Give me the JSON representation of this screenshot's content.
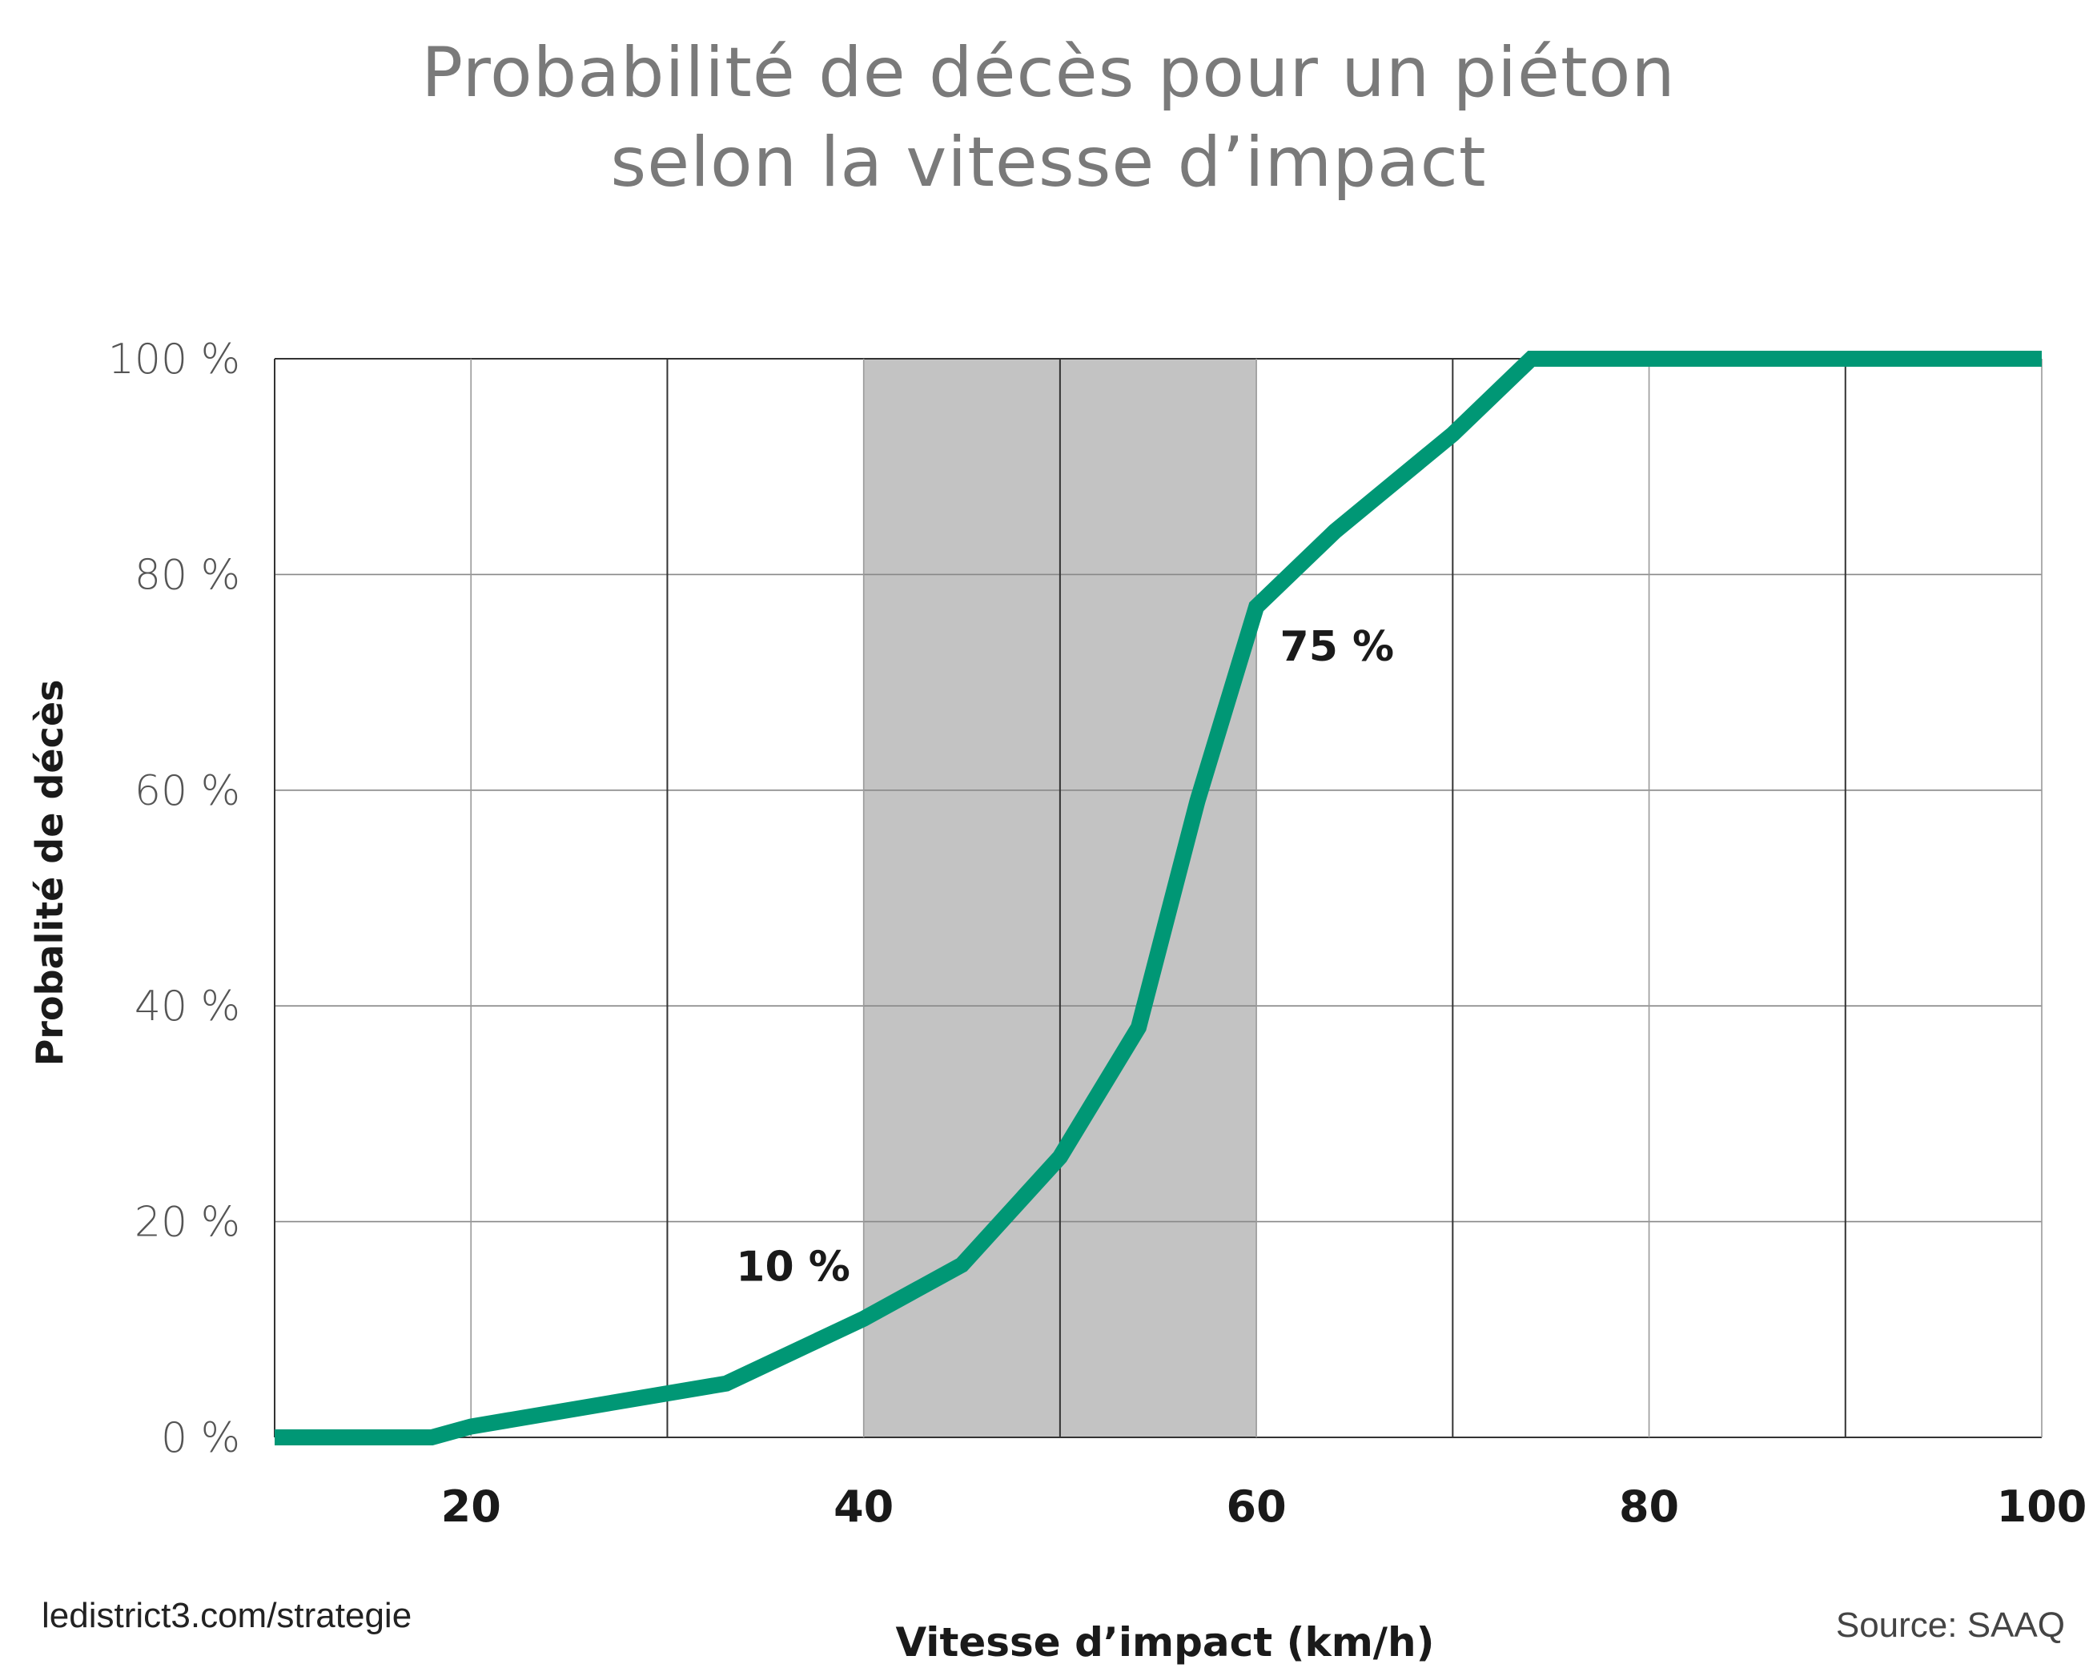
{
  "title_line1": "Probabilité de décès pour un piéton",
  "title_line2": "selon la vitesse d’impact",
  "footer_left": "ledistrict3.com/strategie",
  "source": "Source: SAAQ",
  "colors": {
    "line": "#009775",
    "highlight_band": "#c3c3c3",
    "grid": "#888888",
    "axis_text_bold": "#1a1a1a",
    "axis_text_light": "#555555"
  },
  "chart_data": {
    "type": "line",
    "title": "Probabilité de décès pour un piéton selon la vitesse d’impact",
    "xlabel": "Vitesse d’impact (km/h)",
    "ylabel": "Probalité de décès",
    "xlim": [
      10,
      100
    ],
    "ylim": [
      0,
      100
    ],
    "x_ticks": [
      20,
      40,
      60,
      80,
      100
    ],
    "x_tick_labels": [
      "20",
      "40",
      "60",
      "80",
      "100"
    ],
    "x_gridlines": [
      20,
      30,
      40,
      50,
      60,
      70,
      80,
      90,
      100
    ],
    "y_ticks": [
      0,
      20,
      40,
      60,
      80,
      100
    ],
    "y_tick_labels": [
      "0 %",
      "20 %",
      "40 %",
      "60 %",
      "80 %",
      "100 %"
    ],
    "grid": true,
    "highlight_band": {
      "x_from": 40,
      "x_to": 60
    },
    "series": [
      {
        "x": [
          10,
          18,
          20,
          33,
          40,
          45,
          50,
          54,
          57,
          60,
          64,
          70,
          74,
          80,
          90,
          100
        ],
        "y": [
          0,
          0,
          1,
          5,
          11,
          16,
          26,
          38,
          59,
          77,
          84,
          93,
          100,
          100,
          100,
          100
        ]
      }
    ],
    "annotations": [
      {
        "text": "10 %",
        "x": 33.5,
        "y": 14.5
      },
      {
        "text": "75 %",
        "x": 61.2,
        "y": 72
      }
    ]
  }
}
